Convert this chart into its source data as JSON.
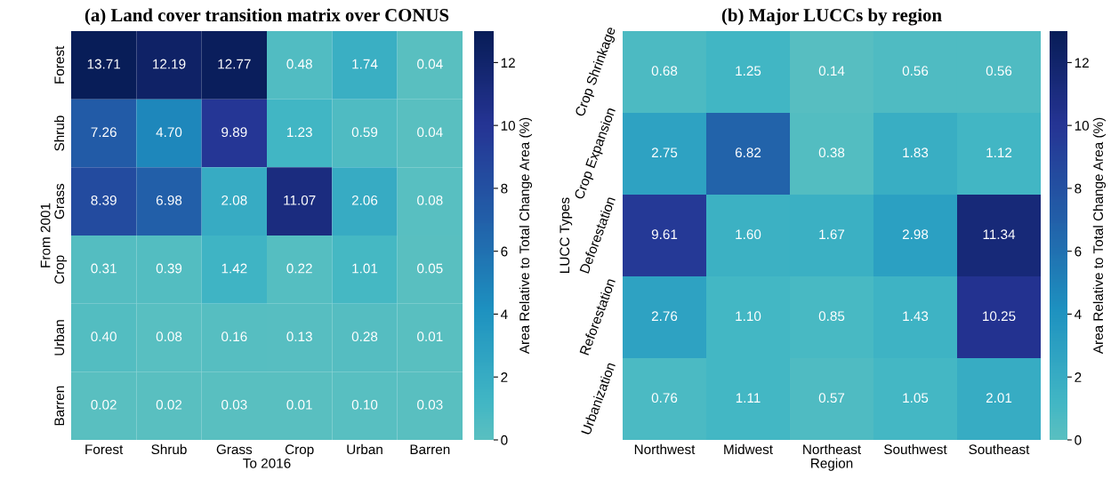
{
  "chart_data": [
    {
      "type": "heatmap",
      "title": "(a) Land cover transition matrix over CONUS",
      "xlabel": "To 2016",
      "ylabel": "From 2001",
      "clabel": "Area Relative to Total Change Area (%)",
      "categories": [
        "Forest",
        "Shrub",
        "Grass",
        "Crop",
        "Urban",
        "Barren"
      ],
      "y_categories": [
        "Forest",
        "Shrub",
        "Grass",
        "Crop",
        "Urban",
        "Barren"
      ],
      "cells": [
        [
          13.71,
          12.19,
          12.77,
          0.48,
          1.74,
          0.04
        ],
        [
          7.26,
          4.7,
          9.89,
          1.23,
          0.59,
          0.04
        ],
        [
          8.39,
          6.98,
          2.08,
          11.07,
          2.06,
          0.08
        ],
        [
          0.31,
          0.39,
          1.42,
          0.22,
          1.01,
          0.05
        ],
        [
          0.4,
          0.08,
          0.16,
          0.13,
          0.28,
          0.01
        ],
        [
          0.02,
          0.02,
          0.03,
          0.01,
          0.1,
          0.03
        ]
      ],
      "cell_labels": [
        [
          "13.71",
          "12.19",
          "12.77",
          "0.48",
          "1.74",
          "0.04"
        ],
        [
          "7.26",
          "4.70",
          "9.89",
          "1.23",
          "0.59",
          "0.04"
        ],
        [
          "8.39",
          "6.98",
          "2.08",
          "11.07",
          "2.06",
          "0.08"
        ],
        [
          "0.31",
          "0.39",
          "1.42",
          "0.22",
          "1.01",
          "0.05"
        ],
        [
          "0.40",
          "0.08",
          "0.16",
          "0.13",
          "0.28",
          "0.01"
        ],
        [
          "0.02",
          "0.02",
          "0.03",
          "0.01",
          "0.10",
          "0.03"
        ]
      ],
      "clim": [
        0,
        13
      ],
      "cticks": [
        0,
        2,
        4,
        6,
        8,
        10,
        12
      ]
    },
    {
      "type": "heatmap",
      "title": "(b) Major LUCCs by region",
      "xlabel": "Region",
      "ylabel": "LUCC Types",
      "clabel": "Area Relative to Total Change Area (%)",
      "categories": [
        "Northwest",
        "Midwest",
        "Northeast",
        "Southwest",
        "Southeast"
      ],
      "y_categories": [
        "Crop Shrinkage",
        "Crop Expansion",
        "Deforestation",
        "Reforestation",
        "Urbanization"
      ],
      "cells": [
        [
          0.68,
          1.25,
          0.14,
          0.56,
          0.56
        ],
        [
          2.75,
          6.82,
          0.38,
          1.83,
          1.12
        ],
        [
          9.61,
          1.6,
          1.67,
          2.98,
          11.34
        ],
        [
          2.76,
          1.1,
          0.85,
          1.43,
          10.25
        ],
        [
          0.76,
          1.11,
          0.57,
          1.05,
          2.01
        ]
      ],
      "cell_labels": [
        [
          "0.68",
          "1.25",
          "0.14",
          "0.56",
          "0.56"
        ],
        [
          "2.75",
          "6.82",
          "0.38",
          "1.83",
          "1.12"
        ],
        [
          "9.61",
          "1.60",
          "1.67",
          "2.98",
          "11.34"
        ],
        [
          "2.76",
          "1.10",
          "0.85",
          "1.43",
          "10.25"
        ],
        [
          "0.76",
          "1.11",
          "0.57",
          "1.05",
          "2.01"
        ]
      ],
      "clim": [
        0,
        13
      ],
      "cticks": [
        0,
        2,
        4,
        6,
        8,
        10,
        12
      ]
    }
  ]
}
